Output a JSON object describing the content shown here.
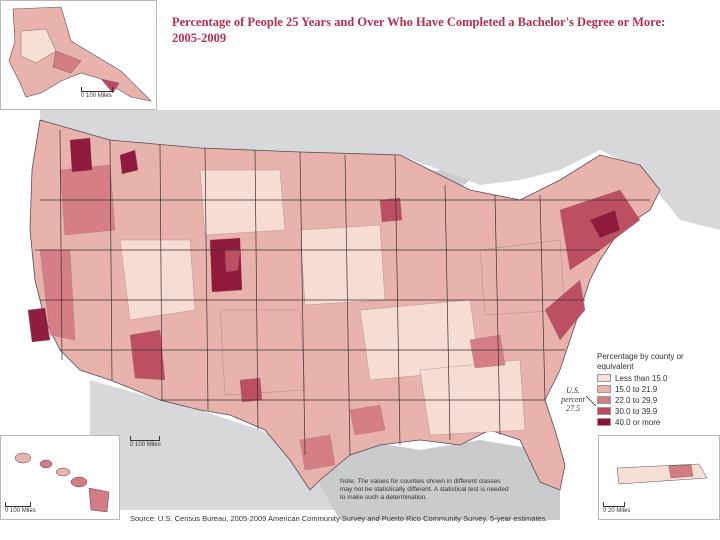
{
  "title": "Percentage of People 25 Years and Over Who Have Completed a Bachelor's Degree or More: 2005-2009",
  "legend": {
    "title": "Percentage by county or equivalent",
    "classes": [
      {
        "label": "Less than 15.0",
        "color": "#f7dfd6"
      },
      {
        "label": "15.0 to 21.9",
        "color": "#e9b3ad"
      },
      {
        "label": "22.0 to 29.9",
        "color": "#d47c84"
      },
      {
        "label": "30.0 to 39.9",
        "color": "#bb4a60"
      },
      {
        "label": "40.0 or more",
        "color": "#8c1236"
      }
    ]
  },
  "us_percent": {
    "label": "U.S. percent",
    "value": "27.5"
  },
  "scales": {
    "alaska": "100 Miles",
    "mainland": "100 Miles",
    "hawaii": "100 Miles",
    "puerto_rico": "20 Miles"
  },
  "scale_zero": "0",
  "note": "Note: The values for counties shown in different classes may not be statistically different. A statistical test is needed to make such a determination.",
  "source": "Source: U.S. Census Bureau, 2005-2009 American Community Survey and Puerto Rico Community Survey, 5-year estimates.",
  "colors": {
    "water": "#c9cbcd",
    "land_outside": "#d6d8da",
    "border": "#5a4a4e",
    "title": "#b52f4c"
  }
}
